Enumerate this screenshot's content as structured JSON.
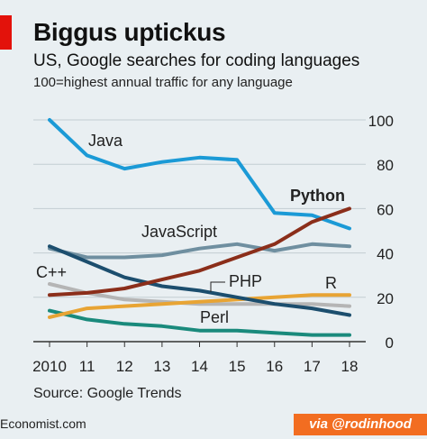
{
  "title": "Biggus uptickus",
  "subtitle": "US, Google searches for coding languages",
  "note": "100=highest annual traffic for any language",
  "source": "Source: Google Trends",
  "footer": {
    "logo": "Economist.com",
    "credit": "via @rodinhood"
  },
  "colors": {
    "brand_red": "#e3120b",
    "credit_bg": "#f26d21"
  },
  "chart_data": {
    "type": "line",
    "x": [
      2010,
      2011,
      2012,
      2013,
      2014,
      2015,
      2016,
      2017,
      2018
    ],
    "xtick_labels": [
      "2010",
      "11",
      "12",
      "13",
      "14",
      "15",
      "16",
      "17",
      "18"
    ],
    "ylim": [
      0,
      100
    ],
    "yticks": [
      0,
      20,
      40,
      60,
      80,
      100
    ],
    "y_axis_side": "right",
    "grid": true,
    "legend": "labels placed directly on lines",
    "series": [
      {
        "name": "Java",
        "color": "#1b9ad6",
        "values": [
          100,
          84,
          78,
          81,
          83,
          82,
          58,
          57,
          51
        ]
      },
      {
        "name": "JavaScript",
        "color": "#6f8fa0",
        "values": [
          42,
          38,
          38,
          39,
          42,
          44,
          41,
          44,
          43
        ]
      },
      {
        "name": "Python",
        "color": "#8b2e1a",
        "bold": true,
        "values": [
          21,
          22,
          24,
          28,
          32,
          38,
          44,
          54,
          60
        ]
      },
      {
        "name": "C++",
        "color": "#b5b5b5",
        "values": [
          26,
          22,
          19,
          18,
          17,
          17,
          17,
          17,
          16
        ]
      },
      {
        "name": "PHP",
        "color": "#1c4e6e",
        "values": [
          43,
          36,
          29,
          25,
          23,
          20,
          17,
          15,
          12
        ]
      },
      {
        "name": "R",
        "color": "#e8a434",
        "values": [
          11,
          15,
          16,
          17,
          18,
          19,
          20,
          21,
          21
        ]
      },
      {
        "name": "Perl",
        "color": "#1a8a7c",
        "values": [
          14,
          10,
          8,
          7,
          5,
          5,
          4,
          3,
          3
        ]
      }
    ]
  }
}
